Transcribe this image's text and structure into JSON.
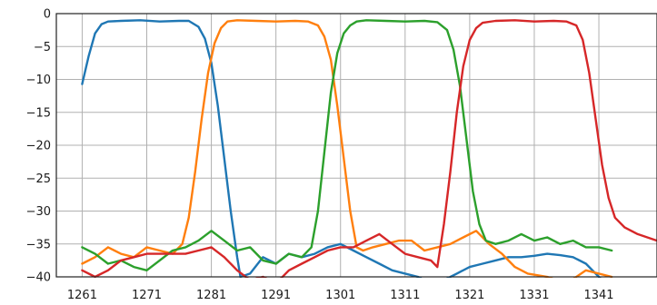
{
  "chart_data": {
    "type": "line",
    "title": "",
    "xlabel": "",
    "ylabel": "",
    "xlim": [
      1257,
      1350
    ],
    "ylim": [
      -40,
      0
    ],
    "grid": true,
    "legend": "none",
    "xticks": [
      1261,
      1271,
      1281,
      1291,
      1301,
      1311,
      1321,
      1331,
      1341
    ],
    "xtick_labels": [
      "1261",
      "1271",
      "1281",
      "1291",
      "1301",
      "1311",
      "1321",
      "1331",
      "1341"
    ],
    "yticks": [
      0,
      -5,
      -10,
      -15,
      -20,
      -25,
      -30,
      -35,
      -40
    ],
    "ytick_labels": [
      "0",
      "−5",
      "−10",
      "−15",
      "−20",
      "−25",
      "−30",
      "−35",
      "−40"
    ],
    "series": [
      {
        "color": "#1f77b4",
        "x": [
          1261,
          1262,
          1263,
          1264,
          1265,
          1267,
          1270,
          1273,
          1276,
          1277.5,
          1279,
          1280,
          1281,
          1282,
          1283,
          1284,
          1285,
          1285.5,
          1287,
          1289,
          1291,
          1293,
          1295,
          1297,
          1299,
          1301,
          1303,
          1305,
          1307,
          1309,
          1311,
          1313,
          1315,
          1317,
          1319,
          1321,
          1323,
          1325,
          1327,
          1329,
          1331,
          1333,
          1335,
          1337,
          1339,
          1341,
          1343
        ],
        "y": [
          -10.7,
          -6.5,
          -3.0,
          -1.6,
          -1.2,
          -1.1,
          -1.0,
          -1.2,
          -1.1,
          -1.1,
          -2.0,
          -3.8,
          -7.5,
          -14,
          -22,
          -30,
          -37,
          -40,
          -39.5,
          -37,
          -38,
          -36.5,
          -37,
          -36.5,
          -35.5,
          -35,
          -36,
          -37,
          -38,
          -39,
          -39.5,
          -40,
          -41,
          -40.5,
          -39.5,
          -38.5,
          -38,
          -37.5,
          -37,
          -37,
          -36.8,
          -36.5,
          -36.7,
          -37,
          -38,
          -40,
          -42
        ]
      },
      {
        "color": "#ff7f0e",
        "x": [
          1261,
          1263,
          1265,
          1267,
          1269,
          1271,
          1273,
          1275,
          1276.5,
          1277.5,
          1278.5,
          1279.5,
          1280.5,
          1281.5,
          1282.5,
          1283.5,
          1285,
          1288,
          1291,
          1294,
          1296,
          1297.5,
          1298.5,
          1299.5,
          1300.5,
          1301.5,
          1302.5,
          1303.5,
          1304.5,
          1306,
          1308,
          1310,
          1312,
          1314,
          1316,
          1318,
          1320,
          1322,
          1324,
          1326,
          1328,
          1330,
          1333,
          1336,
          1339,
          1343
        ],
        "y": [
          -38,
          -37,
          -35.5,
          -36.5,
          -37,
          -35.5,
          -36,
          -36.5,
          -35,
          -31,
          -24,
          -16,
          -9,
          -4.5,
          -2.2,
          -1.2,
          -1.0,
          -1.1,
          -1.2,
          -1.1,
          -1.2,
          -1.8,
          -3.5,
          -7,
          -14,
          -22,
          -30,
          -35.5,
          -36,
          -35.5,
          -35,
          -34.5,
          -34.5,
          -36,
          -35.5,
          -35,
          -34,
          -33,
          -35,
          -36.5,
          -38.5,
          -39.5,
          -40,
          -41,
          -39,
          -40
        ]
      },
      {
        "color": "#2ca02c",
        "x": [
          1261,
          1263,
          1265,
          1267,
          1269,
          1271,
          1273,
          1275,
          1277,
          1279,
          1281,
          1283,
          1285,
          1287,
          1289,
          1291,
          1293,
          1295,
          1296.5,
          1297.5,
          1298.5,
          1299.5,
          1300.5,
          1301.5,
          1302.5,
          1303.5,
          1305,
          1308,
          1311,
          1314,
          1316,
          1317.5,
          1318.5,
          1319.5,
          1320.5,
          1321.5,
          1322.5,
          1323.5,
          1325,
          1327,
          1329,
          1331,
          1333,
          1335,
          1337,
          1339,
          1341,
          1343
        ],
        "y": [
          -35.5,
          -36.5,
          -38,
          -37.5,
          -38.5,
          -39,
          -37.5,
          -36,
          -35.5,
          -34.5,
          -33,
          -34.5,
          -36,
          -35.5,
          -37.5,
          -38,
          -36.5,
          -37,
          -35.5,
          -30,
          -21,
          -12,
          -6,
          -3,
          -1.8,
          -1.2,
          -1.0,
          -1.1,
          -1.2,
          -1.1,
          -1.3,
          -2.5,
          -5.5,
          -11,
          -19,
          -27,
          -32,
          -34.5,
          -35,
          -34.5,
          -33.5,
          -34.5,
          -34,
          -35,
          -34.5,
          -35.5,
          -35.5,
          -36
        ]
      },
      {
        "color": "#d62728",
        "x": [
          1261,
          1263,
          1265,
          1267,
          1269,
          1271,
          1273,
          1275,
          1277,
          1279,
          1281,
          1283,
          1285,
          1287,
          1289,
          1291,
          1293,
          1295,
          1297,
          1299,
          1301,
          1303,
          1305,
          1307,
          1309,
          1311,
          1313,
          1315,
          1316,
          1317,
          1318,
          1319,
          1320,
          1321,
          1322,
          1323,
          1325,
          1328,
          1331,
          1334,
          1336,
          1337.5,
          1338.5,
          1339.5,
          1340.5,
          1341.5,
          1342.5,
          1343.5,
          1345,
          1347,
          1350
        ],
        "y": [
          -39,
          -40,
          -39,
          -37.5,
          -37,
          -36.5,
          -36.5,
          -36.5,
          -36.5,
          -36,
          -35.5,
          -37,
          -39,
          -40.5,
          -40,
          -41,
          -39,
          -38,
          -37,
          -36,
          -35.5,
          -35.5,
          -34.5,
          -33.5,
          -35,
          -36.5,
          -37,
          -37.5,
          -38.5,
          -32,
          -24,
          -15,
          -8,
          -4,
          -2.2,
          -1.4,
          -1.1,
          -1.0,
          -1.2,
          -1.1,
          -1.2,
          -1.8,
          -4,
          -9,
          -16,
          -23,
          -28,
          -31,
          -32.5,
          -33.5,
          -34.5
        ]
      }
    ]
  }
}
